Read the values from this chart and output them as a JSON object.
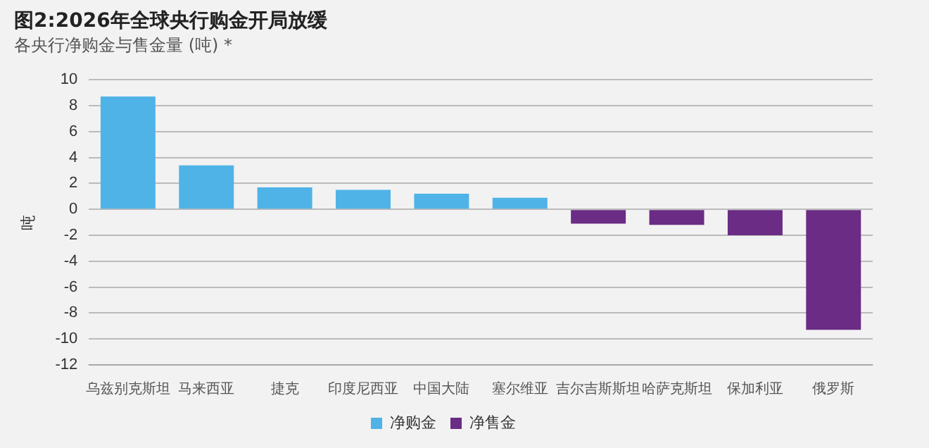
{
  "chart_data": {
    "type": "bar",
    "title": "图2:2026年全球央行购金开局放缓",
    "subtitle": "各央行净购金与售金量 (吨) *",
    "ylabel": "吨",
    "categories": [
      "乌兹别克斯坦",
      "马来西亚",
      "捷克",
      "印度尼西亚",
      "中国大陆",
      "塞尔维亚",
      "吉尔吉斯斯坦",
      "哈萨克斯坦",
      "保加利亚",
      "俄罗斯"
    ],
    "series": [
      {
        "name": "净购金",
        "color": "#4fb3e8",
        "values": [
          8.7,
          3.4,
          1.7,
          1.5,
          1.2,
          0.9,
          null,
          null,
          null,
          null
        ]
      },
      {
        "name": "净售金",
        "color": "#6a2c84",
        "values": [
          null,
          null,
          null,
          null,
          null,
          null,
          -1.1,
          -1.2,
          -2.0,
          -9.3
        ]
      }
    ],
    "ylim": [
      -12,
      10
    ],
    "yticks": [
      -12,
      -10,
      -8,
      -6,
      -4,
      -2,
      0,
      2,
      4,
      6,
      8,
      10
    ],
    "grid": "y",
    "legend": "bottom"
  }
}
